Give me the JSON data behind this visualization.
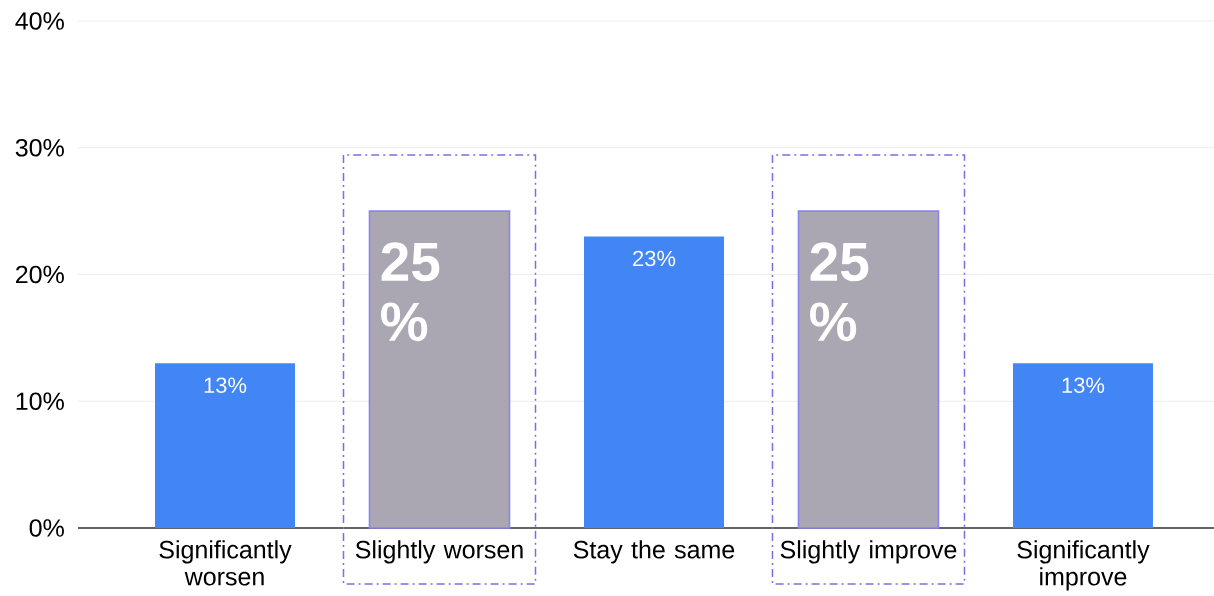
{
  "chart_data": {
    "type": "bar",
    "categories": [
      "Significantly worsen",
      "Slightly worsen",
      "Stay the same",
      "Slightly improve",
      "Significantly improve"
    ],
    "values": [
      13,
      25,
      23,
      25,
      13
    ],
    "colors": [
      "#4285f4",
      "#aaa6b2",
      "#4285f4",
      "#aaa6b2",
      "#4285f4"
    ],
    "value_labels": [
      "13%",
      "25%",
      "23%",
      "25%",
      "13%"
    ],
    "ylim": [
      0,
      40
    ],
    "yticks": [
      {
        "value": 0,
        "label": "0%"
      },
      {
        "value": 10,
        "label": "10%"
      },
      {
        "value": 20,
        "label": "20%"
      },
      {
        "value": 30,
        "label": "30%"
      },
      {
        "value": 40,
        "label": "40%"
      }
    ],
    "grid": "y"
  }
}
